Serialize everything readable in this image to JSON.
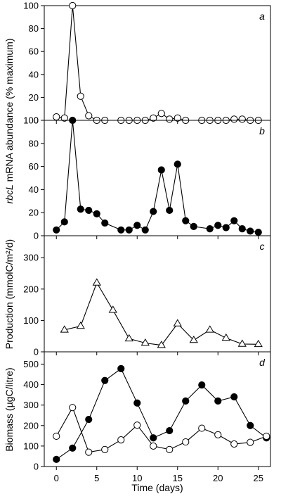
{
  "chart_data": [
    {
      "type": "scatter",
      "panel_label": "a",
      "ylim": [
        0,
        100
      ],
      "yticks": [
        0,
        20,
        40,
        60,
        80,
        100
      ],
      "xlim": [
        -1.5,
        26.5
      ],
      "series": [
        {
          "marker": "open-circle",
          "connected": true,
          "x": [
            0,
            1,
            2,
            3,
            4,
            5,
            6,
            8,
            9,
            10,
            11,
            12,
            13,
            14,
            15,
            16,
            18,
            19,
            20,
            21,
            22,
            23,
            24,
            25
          ],
          "y": [
            3,
            2,
            100,
            21,
            4,
            0,
            0,
            0,
            0,
            0,
            0,
            2,
            6,
            1,
            2,
            0,
            0,
            0,
            0,
            0,
            1,
            1,
            0,
            0
          ]
        }
      ]
    },
    {
      "type": "scatter",
      "panel_label": "b",
      "ylim": [
        0,
        100
      ],
      "yticks": [
        0,
        20,
        40,
        60,
        80,
        100
      ],
      "xlim": [
        -1.5,
        26.5
      ],
      "series": [
        {
          "marker": "filled-circle",
          "connected": true,
          "x": [
            0,
            1,
            2,
            3,
            4,
            5,
            6,
            8,
            9,
            10,
            11,
            12,
            13,
            14,
            15,
            16,
            17,
            19,
            20,
            21,
            22,
            23,
            24,
            25
          ],
          "y": [
            5,
            12,
            100,
            23,
            22,
            19,
            11,
            5,
            5,
            9,
            5,
            21,
            57,
            22,
            62,
            13,
            8,
            6,
            9,
            7,
            13,
            6,
            4,
            3
          ]
        }
      ]
    },
    {
      "type": "scatter",
      "panel_label": "c",
      "ylabel": "Production (mmolC/m²/d)",
      "ylim": [
        0,
        370
      ],
      "yticks": [
        0,
        100,
        200,
        300
      ],
      "xlim": [
        -1.5,
        26.5
      ],
      "series": [
        {
          "marker": "open-triangle",
          "connected": true,
          "x": [
            1,
            3,
            5,
            7,
            9,
            11,
            13,
            15,
            17,
            19,
            21,
            23,
            25
          ],
          "y": [
            70,
            82,
            220,
            133,
            42,
            28,
            21,
            90,
            37,
            70,
            44,
            25,
            24
          ]
        }
      ]
    },
    {
      "type": "scatter",
      "panel_label": "d",
      "ylabel": "Biomass (µgC/litre)",
      "xlabel": "Time (days)",
      "ylim": [
        0,
        560
      ],
      "yticks": [
        0,
        100,
        200,
        300,
        400,
        500
      ],
      "xlim": [
        -1.5,
        26.5
      ],
      "xticks": [
        0,
        5,
        10,
        15,
        20,
        25
      ],
      "series": [
        {
          "marker": "filled-circle",
          "connected": true,
          "x": [
            0,
            2,
            4,
            6,
            8,
            10,
            12,
            14,
            16,
            18,
            20,
            22,
            24,
            26
          ],
          "y": [
            35,
            90,
            230,
            420,
            478,
            310,
            140,
            175,
            320,
            398,
            320,
            340,
            200,
            140
          ]
        },
        {
          "marker": "open-circle",
          "connected": true,
          "x": [
            0,
            2,
            4,
            6,
            8,
            10,
            12,
            14,
            16,
            18,
            20,
            22,
            24,
            26
          ],
          "y": [
            148,
            288,
            70,
            83,
            130,
            202,
            100,
            83,
            120,
            187,
            155,
            110,
            118,
            148
          ]
        }
      ]
    }
  ],
  "shared": {
    "ylabel_top": "rbcL mRNA abundance (% maximum)",
    "ylabel_top_italic": "rbcL",
    "ylabel_top_rest": " mRNA abundance (% maximum)"
  }
}
